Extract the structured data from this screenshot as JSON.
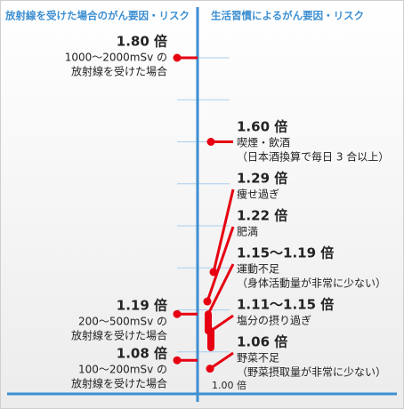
{
  "chart_data": {
    "type": "risk-scale",
    "left_title": "放射線を受けた場合のがん要因・リスク",
    "right_title": "生活習慣によるがん要因・リスク",
    "ylim": [
      1,
      1.8
    ],
    "yticks": [
      {
        "value": 1,
        "label": "1.00 倍"
      }
    ],
    "grid_values": [
      1.1,
      1.2,
      1.3,
      1.4,
      1.5,
      1.6,
      1.7,
      1.8
    ],
    "color": "#e60012",
    "axis_color": "#3d8fd1",
    "left": [
      {
        "value": 1.8,
        "label": "1.80 倍",
        "lines": [
          "1000～2000mSv の",
          "放射線を受けた場合"
        ]
      },
      {
        "value": 1.19,
        "label": "1.19 倍",
        "lines": [
          "200～500mSv の",
          "放射線を受けた場合"
        ]
      },
      {
        "value": 1.08,
        "label": "1.08 倍",
        "lines": [
          "100～200mSv の",
          "放射線を受けた場合"
        ]
      }
    ],
    "right": [
      {
        "value": 1.6,
        "label": "1.60 倍",
        "lines": [
          "喫煙・飲酒",
          "（日本酒換算で毎日 3 合以上）"
        ]
      },
      {
        "value": 1.29,
        "label": "1.29 倍",
        "lines": [
          "痩せ過ぎ"
        ]
      },
      {
        "value": 1.22,
        "label": "1.22 倍",
        "lines": [
          "肥満"
        ]
      },
      {
        "values": [
          1.15,
          1.19
        ],
        "label": "1.15～1.19 倍",
        "lines": [
          "運動不足",
          "（身体活動量が非常に少ない）"
        ]
      },
      {
        "values": [
          1.11,
          1.15
        ],
        "label": "1.11～1.15 倍",
        "lines": [
          "塩分の摂り過ぎ"
        ]
      },
      {
        "value": 1.06,
        "label": "1.06 倍",
        "lines": [
          "野菜不足",
          "（野菜摂取量が非常に少ない）"
        ]
      }
    ]
  }
}
